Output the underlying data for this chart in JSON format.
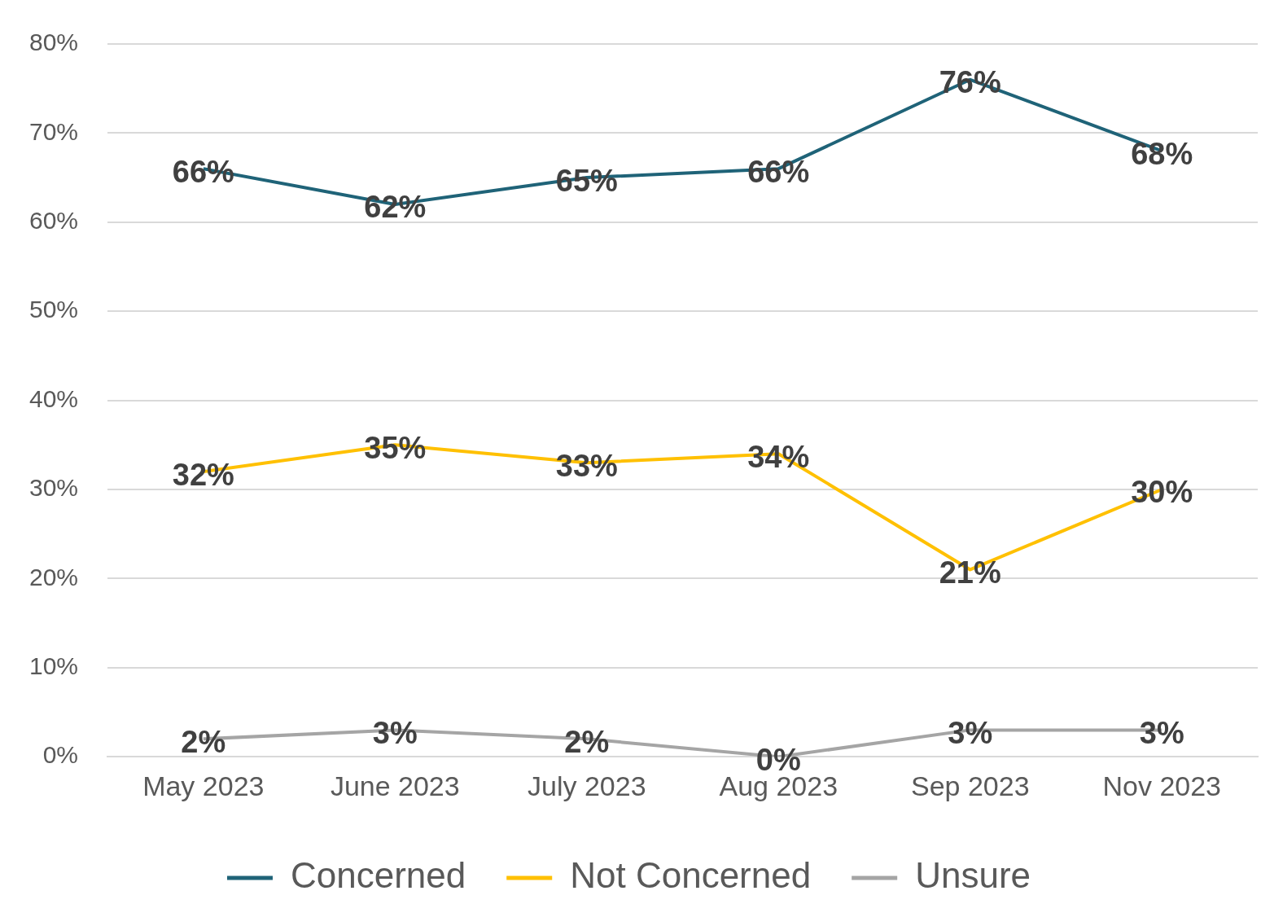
{
  "chart_data": {
    "type": "line",
    "categories": [
      "May 2023",
      "June 2023",
      "July 2023",
      "Aug 2023",
      "Sep 2023",
      "Nov 2023"
    ],
    "series": [
      {
        "name": "Concerned",
        "color": "#1f6378",
        "values": [
          66,
          62,
          65,
          66,
          76,
          68
        ],
        "value_labels": [
          "66%",
          "62%",
          "65%",
          "66%",
          "76%",
          "68%"
        ]
      },
      {
        "name": "Not Concerned",
        "color": "#ffc000",
        "values": [
          32,
          35,
          33,
          34,
          21,
          30
        ],
        "value_labels": [
          "32%",
          "35%",
          "33%",
          "34%",
          "21%",
          "30%"
        ]
      },
      {
        "name": "Unsure",
        "color": "#a5a5a5",
        "values": [
          2,
          3,
          2,
          0,
          3,
          3
        ],
        "value_labels": [
          "2%",
          "3%",
          "2%",
          "0%",
          "3%",
          "3%"
        ]
      }
    ],
    "ylim": [
      0,
      80
    ],
    "yticks": [
      {
        "value": 0,
        "label": "0%"
      },
      {
        "value": 10,
        "label": "10%"
      },
      {
        "value": 20,
        "label": "20%"
      },
      {
        "value": 30,
        "label": "30%"
      },
      {
        "value": 40,
        "label": "40%"
      },
      {
        "value": 50,
        "label": "50%"
      },
      {
        "value": 60,
        "label": "60%"
      },
      {
        "value": 70,
        "label": "70%"
      },
      {
        "value": 80,
        "label": "80%"
      }
    ],
    "grid": "y",
    "legend": "bottom",
    "marker": "none",
    "line_style": "solid"
  }
}
